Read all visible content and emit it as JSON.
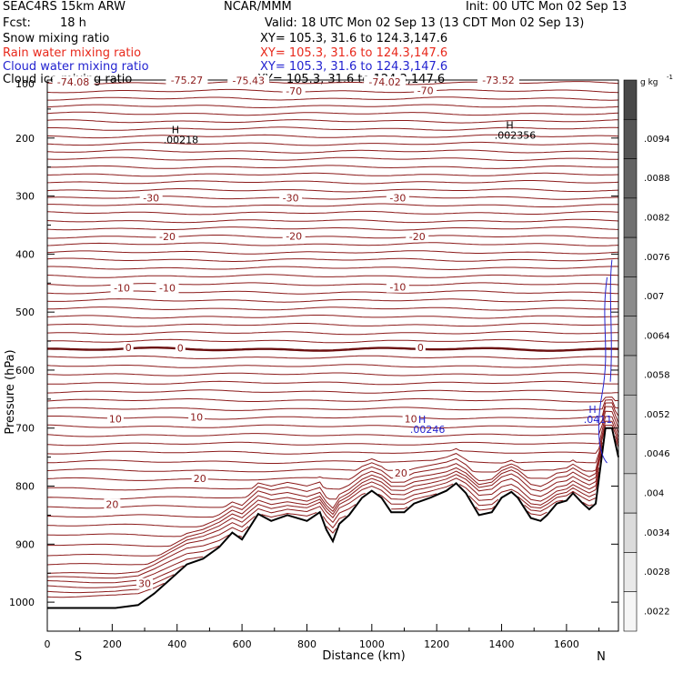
{
  "header": {
    "model": "SEAC4RS 15km ARW",
    "center": "NCAR/MMM",
    "init": "Init: 00 UTC Mon 02 Sep 13",
    "fcst_label": "Fcst:",
    "fcst_value": "18 h",
    "valid": "Valid: 18 UTC Mon 02 Sep 13 (13 CDT Mon 02 Sep 13)"
  },
  "fields": [
    {
      "name": "Snow mixing ratio",
      "xy": "XY=  105.3,  31.6 to 124.3,147.6",
      "color": "#000000"
    },
    {
      "name": "Rain water mixing ratio",
      "xy": "XY=  105.3,  31.6 to 124.3,147.6",
      "color": "#e8291c"
    },
    {
      "name": "Cloud water mixing ratio",
      "xy": "XY=  105.3,  31.6 to 124.3,147.6",
      "color": "#2323d0"
    },
    {
      "name": "Cloud ice mixing ratio",
      "xy": "XY=  105.3,  31.6 to 124.3,147.6",
      "color": "#000000"
    }
  ],
  "colorbar": {
    "unit": "g kg",
    "unit_exp": "-1",
    "ticks": [
      ".0094",
      ".0088",
      ".0082",
      ".0076",
      ".007",
      ".0064",
      ".0058",
      ".0052",
      ".0046",
      ".004",
      ".0034",
      ".0028",
      ".0022"
    ]
  },
  "chart_data": {
    "type": "cross-section contour",
    "xlabel": "Distance (km)",
    "ylabel": "Pressure (hPa)",
    "xlim": [
      0,
      1760
    ],
    "ylim": [
      1050,
      100
    ],
    "x_ticks": [
      0,
      200,
      400,
      600,
      800,
      1000,
      1200,
      1400,
      1600
    ],
    "y_ticks": [
      200,
      300,
      400,
      500,
      600,
      700,
      800,
      900,
      1000
    ],
    "y_tick_labels": [
      "200",
      "300",
      "400",
      "500",
      "600",
      "700",
      "800",
      "900",
      "1000"
    ],
    "y_top_label": "100",
    "endpoints": {
      "left": "S",
      "right": "N"
    },
    "temperature_contours": {
      "interval": 5,
      "color": "#8b1a1a",
      "labels": [
        {
          "text": "-74.08",
          "x": 80,
          "p": 103
        },
        {
          "text": "-75.27",
          "x": 430,
          "p": 100
        },
        {
          "text": "-75.43",
          "x": 620,
          "p": 101
        },
        {
          "text": "-74.02",
          "x": 1040,
          "p": 103
        },
        {
          "text": "-73.52",
          "x": 1390,
          "p": 100
        },
        {
          "text": "-70",
          "x": 760,
          "p": 119
        },
        {
          "text": "-70",
          "x": 1165,
          "p": 118
        },
        {
          "text": "-30",
          "x": 320,
          "p": 303
        },
        {
          "text": "-30",
          "x": 750,
          "p": 303
        },
        {
          "text": "-30",
          "x": 1080,
          "p": 303
        },
        {
          "text": "-20",
          "x": 370,
          "p": 370
        },
        {
          "text": "-20",
          "x": 760,
          "p": 369
        },
        {
          "text": "-20",
          "x": 1140,
          "p": 370
        },
        {
          "text": "-10",
          "x": 230,
          "p": 458
        },
        {
          "text": "-10",
          "x": 370,
          "p": 458
        },
        {
          "text": "-10",
          "x": 1080,
          "p": 457
        },
        {
          "text": "0",
          "x": 250,
          "p": 561
        },
        {
          "text": "0",
          "x": 410,
          "p": 562
        },
        {
          "text": "0",
          "x": 1150,
          "p": 561
        },
        {
          "text": "10",
          "x": 210,
          "p": 684
        },
        {
          "text": "10",
          "x": 460,
          "p": 681
        },
        {
          "text": "10",
          "x": 1120,
          "p": 684
        },
        {
          "text": "20",
          "x": 470,
          "p": 787
        },
        {
          "text": "20",
          "x": 1090,
          "p": 777
        },
        {
          "text": "20",
          "x": 200,
          "p": 831
        },
        {
          "text": "30",
          "x": 300,
          "p": 968
        }
      ]
    },
    "extrema_labels": [
      {
        "letter": "H",
        "value": ".00218",
        "x": 395,
        "p": 192,
        "color": "#000000"
      },
      {
        "letter": "H",
        "value": ".002356",
        "x": 1425,
        "p": 184,
        "color": "#000000"
      },
      {
        "letter": "H",
        "value": ".00246",
        "x": 1155,
        "p": 691,
        "color": "#2323d0"
      },
      {
        "letter": "H",
        "value": ".0411",
        "x": 1680,
        "p": 674,
        "color": "#2323d0"
      }
    ],
    "terrain": {
      "x": [
        0,
        210,
        280,
        330,
        380,
        430,
        480,
        530,
        570,
        600,
        650,
        690,
        740,
        800,
        840,
        860,
        880,
        900,
        930,
        970,
        1000,
        1030,
        1060,
        1100,
        1130,
        1180,
        1230,
        1260,
        1290,
        1330,
        1370,
        1400,
        1430,
        1450,
        1490,
        1520,
        1540,
        1570,
        1600,
        1620,
        1650,
        1670,
        1690,
        1720,
        1740,
        1760
      ],
      "p": [
        1010,
        1010,
        1005,
        985,
        960,
        935,
        925,
        905,
        880,
        892,
        848,
        860,
        850,
        860,
        845,
        875,
        895,
        865,
        850,
        820,
        808,
        820,
        845,
        845,
        830,
        820,
        808,
        795,
        812,
        850,
        845,
        820,
        810,
        820,
        855,
        860,
        850,
        830,
        825,
        812,
        830,
        840,
        830,
        700,
        700,
        750
      ]
    }
  }
}
